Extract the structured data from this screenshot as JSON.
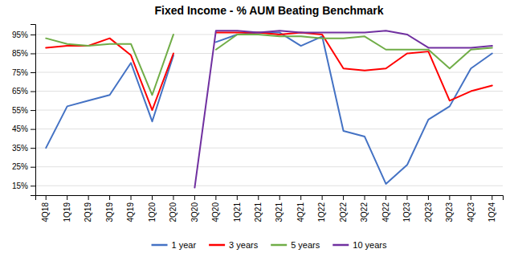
{
  "chart_data": {
    "type": "line",
    "title": "Fixed Income - % AUM Beating Benchmark",
    "categories": [
      "4Q18",
      "1Q19",
      "2Q19",
      "3Q19",
      "4Q19",
      "1Q20",
      "2Q20",
      "3Q20",
      "4Q20",
      "1Q21",
      "2Q21",
      "3Q21",
      "4Q21",
      "1Q22",
      "2Q22",
      "3Q22",
      "4Q22",
      "1Q23",
      "2Q23",
      "3Q23",
      "4Q23",
      "1Q24"
    ],
    "series": [
      {
        "name": "1 year",
        "color": "#4472C4",
        "values": [
          0.35,
          0.57,
          0.6,
          0.63,
          0.8,
          0.49,
          0.84,
          null,
          0.91,
          0.95,
          0.96,
          0.96,
          0.89,
          0.94,
          0.44,
          0.41,
          0.16,
          0.26,
          0.5,
          0.57,
          0.77,
          0.85
        ]
      },
      {
        "name": "3 years",
        "color": "#FF0000",
        "values": [
          0.88,
          0.89,
          0.89,
          0.93,
          0.84,
          0.55,
          0.85,
          null,
          0.96,
          0.96,
          0.96,
          0.95,
          0.96,
          0.95,
          0.77,
          0.76,
          0.77,
          0.85,
          0.86,
          0.6,
          0.65,
          0.68
        ]
      },
      {
        "name": "5 years",
        "color": "#70AD47",
        "values": [
          0.93,
          0.9,
          0.89,
          0.9,
          0.9,
          0.63,
          0.95,
          null,
          0.87,
          0.95,
          0.95,
          0.94,
          0.94,
          0.93,
          0.93,
          0.94,
          0.87,
          0.87,
          0.87,
          0.77,
          0.87,
          0.88
        ]
      },
      {
        "name": "10 years",
        "color": "#7030A0",
        "values": [
          null,
          null,
          null,
          null,
          null,
          null,
          null,
          0.14,
          0.97,
          0.97,
          0.96,
          0.97,
          0.96,
          0.96,
          0.96,
          0.96,
          0.97,
          0.95,
          0.88,
          0.88,
          0.88,
          0.89
        ]
      }
    ],
    "ylim": [
      0.1,
      1.005
    ],
    "yticks": [
      {
        "value": 0.15,
        "label": "15%"
      },
      {
        "value": 0.25,
        "label": "25%"
      },
      {
        "value": 0.35,
        "label": "35%"
      },
      {
        "value": 0.45,
        "label": "45%"
      },
      {
        "value": 0.55,
        "label": "55%"
      },
      {
        "value": 0.65,
        "label": "65%"
      },
      {
        "value": 0.75,
        "label": "75%"
      },
      {
        "value": 0.85,
        "label": "85%"
      },
      {
        "value": 0.95,
        "label": "95%"
      }
    ],
    "grid": true,
    "legend": "bottom"
  }
}
